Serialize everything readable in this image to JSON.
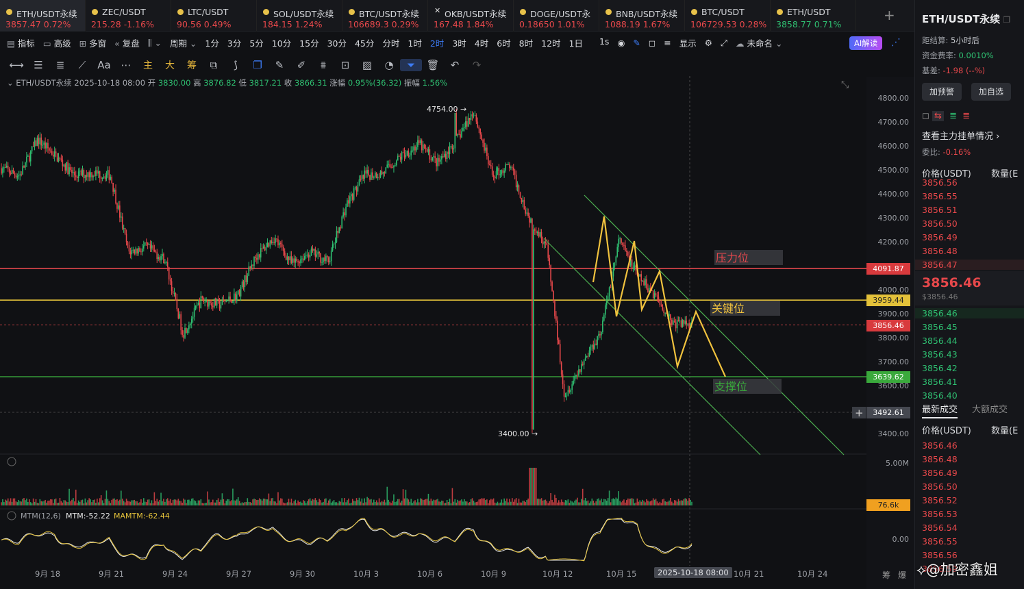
{
  "tabs": [
    {
      "name": "ETH/USDT永续",
      "price": "3857.47",
      "change": "0.72%",
      "trend": "down",
      "icon": "eth-coin-icon"
    },
    {
      "name": "ZEC/USDT",
      "price": "215.28",
      "change": "-1.16%",
      "trend": "down",
      "icon": "zec-coin-icon"
    },
    {
      "name": "LTC/USDT",
      "price": "90.56",
      "change": "0.49%",
      "trend": "down",
      "icon": "ltc-coin-icon"
    },
    {
      "name": "SOL/USDT永续",
      "price": "184.15",
      "change": "1.24%",
      "trend": "down",
      "icon": "sol-coin-icon"
    },
    {
      "name": "BTC/USDT永续",
      "price": "106689.3",
      "change": "0.29%",
      "trend": "down",
      "icon": "btc-coin-icon"
    },
    {
      "name": "OKB/USDT永续",
      "price": "167.48",
      "change": "1.84%",
      "trend": "down",
      "icon": "okb-coin-icon"
    },
    {
      "name": "DOGE/USDT永",
      "price": "0.18650",
      "change": "1.01%",
      "trend": "down",
      "icon": "doge-coin-icon"
    },
    {
      "name": "BNB/USDT永续",
      "price": "1088.19",
      "change": "1.67%",
      "trend": "down",
      "icon": "bnb-coin-icon"
    },
    {
      "name": "BTC/USDT",
      "price": "106729.53",
      "change": "0.28%",
      "trend": "down",
      "icon": "btc-coin-icon"
    },
    {
      "name": "ETH/USDT",
      "price": "3858.77",
      "change": "0.71%",
      "trend": "up",
      "icon": "eth-coin-icon"
    }
  ],
  "toolbar1": {
    "indicators": "指标",
    "advanced": "高级",
    "multi": "多窗",
    "replay": "复盘",
    "period": "周期",
    "intervals": [
      "1分",
      "3分",
      "5分",
      "10分",
      "15分",
      "30分",
      "45分",
      "分时",
      "1时",
      "2时",
      "3时",
      "4时",
      "6时",
      "8时",
      "12时",
      "1日",
      "1s"
    ],
    "selected_interval": "2时",
    "display": "显示",
    "unnamed": "未命名",
    "ai": "AI解读"
  },
  "toolbar2": {
    "main": "主",
    "big": "大",
    "chips": "筹",
    "font": "Aa"
  },
  "info": {
    "symbol": "ETH/USDT永续",
    "time": "2025-10-18 08:00",
    "open_label": "开",
    "open": "3830.00",
    "high_label": "高",
    "high": "3876.82",
    "low_label": "低",
    "low": "3817.21",
    "close_label": "收",
    "close": "3866.31",
    "chg_label": "涨幅",
    "chg": "0.95%(36.32)",
    "amp_label": "振幅",
    "amp": "1.56%"
  },
  "yaxis": [
    "4800.00",
    "4700.00",
    "4600.00",
    "4500.00",
    "4400.00",
    "4300.00",
    "4200.00",
    "4100.00",
    "4000.00",
    "3900.00",
    "3800.00",
    "3700.00",
    "3600.00",
    "3500.00",
    "3400.00"
  ],
  "levels": {
    "resistance": "4091.87",
    "key": "3959.44",
    "current": "3856.46",
    "support": "3639.62",
    "cursor": "3492.61",
    "volume": "76.6k",
    "vol_scale": "5.00M",
    "mtm_zero": "0.00"
  },
  "annotations": {
    "resistance": "压力位",
    "key": "关键位",
    "support": "支撑位",
    "high": "4754.00 →",
    "low": "3400.00 →"
  },
  "mtm": {
    "label": "MTM(12,6)",
    "mtm": "MTM:-52.22",
    "mamtm": "MAMTM:-62.44"
  },
  "xaxis": [
    "9月 18",
    "9月 21",
    "9月 24",
    "9月 27",
    "9月 30",
    "10月 3",
    "10月 6",
    "10月 9",
    "10月 12",
    "10月 15",
    "10月 21",
    "10月 24"
  ],
  "x_selected": "2025-10-18 08:00",
  "x_corner": [
    "筹",
    "爆"
  ],
  "chart_data": {
    "type": "candlestick",
    "symbol": "ETH/USDT永续",
    "interval": "2时",
    "ylim": [
      3350,
      4850
    ],
    "x_range": [
      "9月 16",
      "10月 27"
    ],
    "path_close": [
      4510,
      4480,
      4630,
      4560,
      4480,
      4490,
      4480,
      4160,
      4180,
      4130,
      3820,
      3960,
      3940,
      3980,
      4140,
      4220,
      4110,
      4160,
      4120,
      4360,
      4480,
      4490,
      4560,
      4610,
      4530,
      4620,
      4750,
      4480,
      4520,
      4310,
      4190,
      3560,
      3700,
      3830,
      4210,
      4060,
      3980,
      3860,
      3867
    ],
    "extremes": {
      "high": 4754.0,
      "low": 3400.0
    },
    "horizontal_levels": [
      {
        "name": "压力位",
        "value": 4091.87,
        "color": "#e5484d"
      },
      {
        "name": "关键位",
        "value": 3959.44,
        "color": "#e3c13a"
      },
      {
        "name": "支撑位",
        "value": 3639.62,
        "color": "#3aa93c"
      }
    ],
    "channel_color": "#4caf50",
    "projection_color": "#f0c23e",
    "grid": false
  }
}
